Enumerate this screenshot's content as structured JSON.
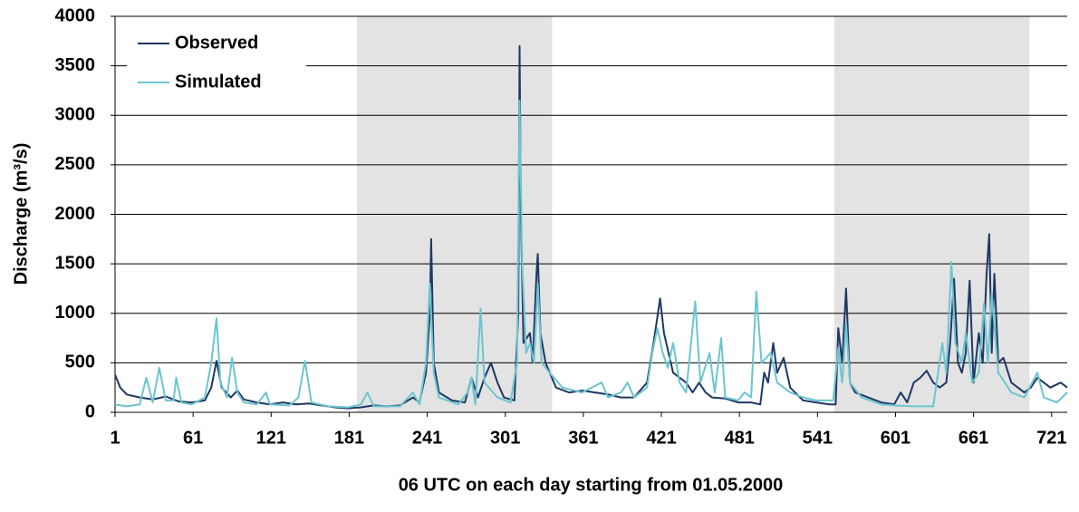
{
  "chart_data": {
    "type": "line",
    "x_label": "06 UTC on each day starting from 01.05.2000",
    "y_label": "Discharge (m³/s)",
    "xlim": [
      1,
      733
    ],
    "ylim": [
      0,
      4000
    ],
    "xticks": [
      1,
      61,
      121,
      181,
      241,
      301,
      361,
      421,
      481,
      541,
      601,
      661,
      721
    ],
    "yticks": [
      0,
      500,
      1000,
      1500,
      2000,
      2500,
      3000,
      3500,
      4000
    ],
    "grid": true,
    "legend": "upper left",
    "shaded_ranges": [
      [
        187,
        337
      ],
      [
        554,
        704
      ]
    ],
    "shade_color": "#e3e3e3",
    "series": [
      {
        "name": "Observed",
        "color": "#1f3864",
        "x": [
          1,
          5,
          10,
          20,
          30,
          40,
          50,
          60,
          70,
          75,
          79,
          83,
          90,
          95,
          100,
          110,
          120,
          130,
          140,
          150,
          160,
          170,
          180,
          190,
          200,
          210,
          220,
          230,
          235,
          240,
          243,
          244,
          246,
          250,
          260,
          270,
          275,
          280,
          285,
          290,
          295,
          300,
          308,
          311,
          312,
          313,
          315,
          320,
          322,
          325,
          326,
          328,
          332,
          340,
          350,
          360,
          370,
          380,
          390,
          400,
          410,
          415,
          420,
          423,
          430,
          440,
          445,
          450,
          455,
          460,
          470,
          480,
          490,
          497,
          500,
          503,
          507,
          510,
          515,
          520,
          530,
          540,
          550,
          555,
          557,
          560,
          563,
          566,
          570,
          580,
          590,
          600,
          605,
          610,
          615,
          620,
          625,
          630,
          635,
          640,
          643,
          646,
          649,
          652,
          655,
          658,
          661,
          665,
          668,
          671,
          673,
          675,
          677,
          680,
          684,
          690,
          700,
          705,
          710,
          715,
          720,
          728,
          733
        ],
        "values": [
          380,
          250,
          180,
          150,
          130,
          160,
          110,
          100,
          120,
          250,
          520,
          250,
          150,
          220,
          130,
          100,
          80,
          100,
          80,
          90,
          70,
          50,
          40,
          50,
          70,
          60,
          70,
          150,
          100,
          400,
          1000,
          1750,
          500,
          200,
          120,
          100,
          350,
          150,
          350,
          500,
          300,
          150,
          120,
          1000,
          3700,
          2000,
          700,
          800,
          500,
          1400,
          1600,
          800,
          500,
          250,
          200,
          220,
          200,
          180,
          150,
          150,
          300,
          700,
          1150,
          800,
          400,
          300,
          200,
          300,
          200,
          150,
          140,
          100,
          100,
          80,
          400,
          300,
          700,
          400,
          550,
          250,
          120,
          100,
          80,
          80,
          850,
          500,
          1250,
          300,
          200,
          150,
          100,
          80,
          200,
          100,
          300,
          350,
          420,
          300,
          250,
          300,
          700,
          1350,
          500,
          400,
          600,
          1330,
          300,
          800,
          500,
          1400,
          1800,
          600,
          1400,
          500,
          550,
          300,
          200,
          250,
          350,
          300,
          250,
          300,
          250
        ]
      },
      {
        "name": "Simulated",
        "color": "#6cc5cf",
        "x": [
          1,
          10,
          20,
          25,
          30,
          35,
          40,
          46,
          48,
          52,
          60,
          70,
          75,
          79,
          82,
          87,
          91,
          95,
          100,
          110,
          117,
          120,
          135,
          142,
          147,
          152,
          165,
          180,
          190,
          195,
          200,
          220,
          230,
          235,
          240,
          243,
          246,
          250,
          265,
          272,
          275,
          278,
          282,
          285,
          295,
          305,
          310,
          312,
          314,
          317,
          320,
          323,
          326,
          329,
          335,
          345,
          360,
          375,
          380,
          390,
          395,
          400,
          410,
          414,
          418,
          422,
          426,
          430,
          435,
          440,
          447,
          451,
          458,
          462,
          467,
          470,
          480,
          485,
          490,
          494,
          498,
          505,
          510,
          520,
          530,
          540,
          553,
          557,
          560,
          563,
          566,
          575,
          590,
          600,
          615,
          630,
          637,
          640,
          644,
          647,
          652,
          655,
          660,
          665,
          669,
          672,
          675,
          680,
          690,
          700,
          710,
          715,
          725,
          733
        ],
        "values": [
          80,
          60,
          80,
          350,
          100,
          450,
          120,
          120,
          350,
          100,
          80,
          150,
          500,
          950,
          300,
          150,
          550,
          200,
          100,
          80,
          200,
          80,
          70,
          150,
          520,
          100,
          60,
          50,
          80,
          200,
          60,
          60,
          200,
          80,
          500,
          1300,
          400,
          150,
          80,
          200,
          350,
          80,
          1050,
          300,
          150,
          100,
          500,
          3150,
          1500,
          600,
          700,
          500,
          1300,
          500,
          400,
          250,
          200,
          300,
          150,
          200,
          300,
          150,
          250,
          600,
          850,
          600,
          450,
          700,
          300,
          200,
          1120,
          300,
          600,
          200,
          750,
          150,
          120,
          200,
          150,
          1220,
          500,
          600,
          300,
          200,
          150,
          120,
          120,
          650,
          300,
          900,
          300,
          150,
          80,
          70,
          60,
          60,
          700,
          400,
          1520,
          700,
          500,
          800,
          300,
          400,
          1100,
          500,
          1200,
          400,
          200,
          150,
          400,
          150,
          100,
          200
        ]
      }
    ]
  }
}
